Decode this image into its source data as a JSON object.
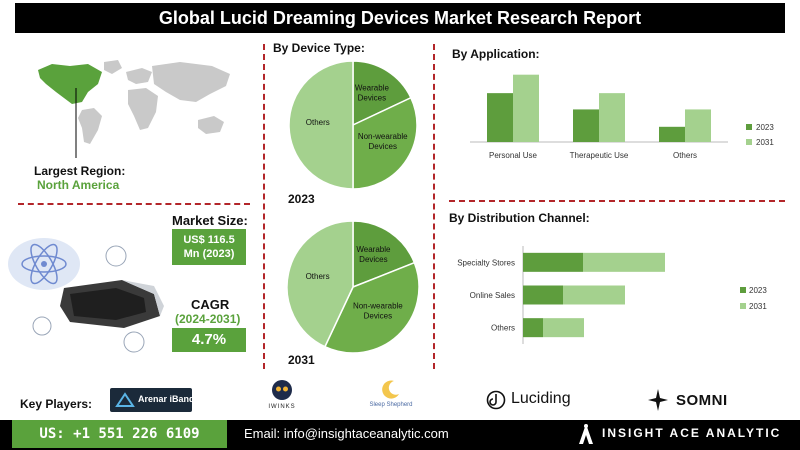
{
  "header": {
    "title": "Global Lucid Dreaming Devices Market Research Report"
  },
  "region": {
    "label": "Largest Region:",
    "value": "North America"
  },
  "market_size": {
    "label": "Market Size:",
    "value_line1": "US$ 116.5",
    "value_line2": "Mn (2023)"
  },
  "cagr": {
    "label": "CAGR",
    "period": "(2024-2031)",
    "value": "4.7%"
  },
  "device_type": {
    "title": "By Device Type:",
    "year_a": "2023",
    "year_b": "2031"
  },
  "application": {
    "title": "By Application:"
  },
  "distribution": {
    "title": "By Distribution Channel:"
  },
  "key_players": {
    "label": "Key Players:",
    "players": [
      "Arenar iBand+",
      "IWINKS",
      "Sleep Shepherd",
      "Luciding",
      "SOMNI"
    ]
  },
  "footer": {
    "phone": "US: +1 551 226 6109",
    "email": "Email: info@insightaceanalytic.com",
    "brand": "INSIGHT ACE ANALYTIC"
  },
  "colors": {
    "accent_green": "#5aa23c",
    "dark_green": "#5e9d3d",
    "light_green": "#a4d18e",
    "divider_red": "#b3262a"
  },
  "chart_data": [
    {
      "type": "pie",
      "title": "2023",
      "labels": [
        "Wearable Devices",
        "Non-wearable Devices",
        "Others"
      ],
      "values": [
        18,
        32,
        50
      ]
    },
    {
      "type": "pie",
      "title": "2031",
      "labels": [
        "Wearable Devices",
        "Non-wearable Devices",
        "Others"
      ],
      "values": [
        19,
        38,
        43
      ]
    },
    {
      "type": "bar",
      "title": "By Application:",
      "categories": [
        "Personal Use",
        "Therapeutic Use",
        "Others"
      ],
      "series": [
        {
          "name": "2023",
          "values": [
            45,
            30,
            14
          ]
        },
        {
          "name": "2031",
          "values": [
            62,
            45,
            30
          ]
        }
      ],
      "ylim": [
        0,
        70
      ],
      "legend": "right"
    },
    {
      "type": "bar",
      "orientation": "horizontal",
      "stacked": true,
      "title": "By Distribution Channel:",
      "categories": [
        "Specialty Stores",
        "Online Sales",
        "Others"
      ],
      "series": [
        {
          "name": "2023",
          "values": [
            60,
            40,
            20
          ]
        },
        {
          "name": "2031",
          "values": [
            82,
            62,
            41
          ]
        }
      ],
      "xlim": [
        0,
        180
      ],
      "legend": "right"
    }
  ]
}
